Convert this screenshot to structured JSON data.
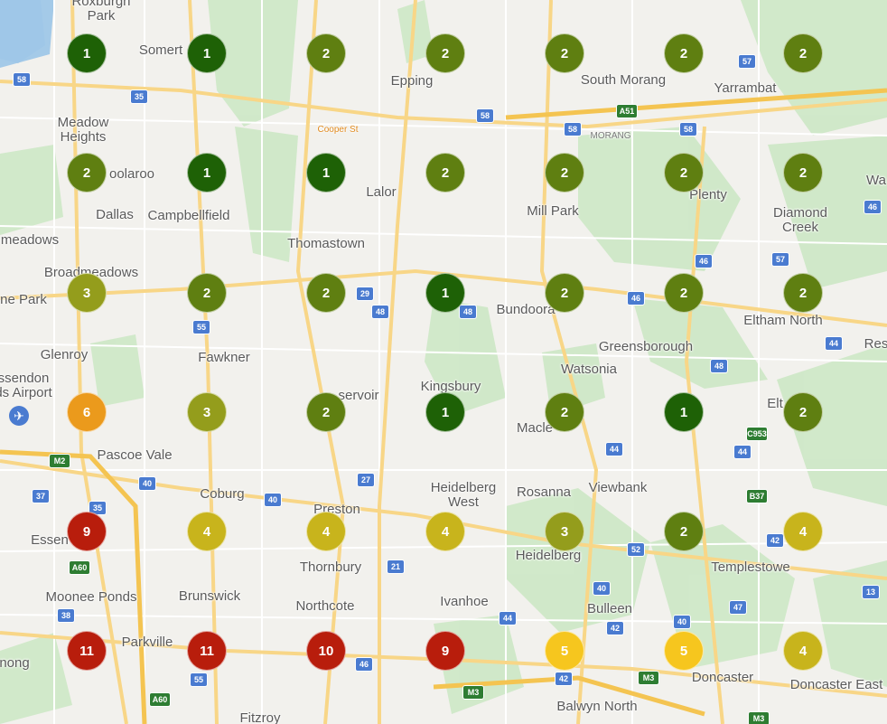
{
  "colors": {
    "marker_1": "#1e6106",
    "marker_2": "#5f7f11",
    "marker_3": "#949d1c",
    "marker_4": "#c8b41c",
    "marker_5": "#f6c61e",
    "marker_6": "#eb9a1c",
    "marker_high": "#b81d0c",
    "airport": "#4a7bd0"
  },
  "places": [
    {
      "id": "roxburgh-park",
      "text": "Roxburgh\nPark"
    },
    {
      "id": "somerton",
      "text": "Somert"
    },
    {
      "id": "epping",
      "text": "Epping"
    },
    {
      "id": "south-morang",
      "text": "South Morang"
    },
    {
      "id": "yarrambat",
      "text": "Yarrambat"
    },
    {
      "id": "meadow-heights",
      "text": "Meadow\nHeights"
    },
    {
      "id": "coolaroo",
      "text": "oolaroo"
    },
    {
      "id": "lalor",
      "text": "Lalor"
    },
    {
      "id": "mill-park",
      "text": "Mill Park"
    },
    {
      "id": "plenty",
      "text": "Plenty"
    },
    {
      "id": "wa",
      "text": "Wa"
    },
    {
      "id": "dallas",
      "text": "Dallas"
    },
    {
      "id": "campbellfield",
      "text": "Campbellfield"
    },
    {
      "id": "diamond-creek",
      "text": "Diamond\nCreek"
    },
    {
      "id": "meadows",
      "text": "meadows"
    },
    {
      "id": "thomastown",
      "text": "Thomastown"
    },
    {
      "id": "broadmeadows",
      "text": "Broadmeadows"
    },
    {
      "id": "ne-park",
      "text": "ne Park"
    },
    {
      "id": "bundoora",
      "text": "Bundoora"
    },
    {
      "id": "eltham-north",
      "text": "Eltham North"
    },
    {
      "id": "glenroy",
      "text": "Glenroy"
    },
    {
      "id": "greensborough",
      "text": "Greensborough"
    },
    {
      "id": "res",
      "text": "Res"
    },
    {
      "id": "fawkner",
      "text": "Fawkner"
    },
    {
      "id": "watsonia",
      "text": "Watsonia"
    },
    {
      "id": "essendon-airport",
      "text": "ssendon\nds Airport"
    },
    {
      "id": "reservoir",
      "text": "servoir"
    },
    {
      "id": "kingsbury",
      "text": "Kingsbury"
    },
    {
      "id": "eltham",
      "text": "Elt"
    },
    {
      "id": "macleod",
      "text": "Macle"
    },
    {
      "id": "pascoe-vale",
      "text": "Pascoe Vale"
    },
    {
      "id": "coburg",
      "text": "Coburg"
    },
    {
      "id": "heidelberg-west",
      "text": "Heidelberg\nWest"
    },
    {
      "id": "rosanna",
      "text": "Rosanna"
    },
    {
      "id": "viewbank",
      "text": "Viewbank"
    },
    {
      "id": "preston",
      "text": "Preston"
    },
    {
      "id": "essendon",
      "text": "Essen"
    },
    {
      "id": "heidelberg",
      "text": "Heidelberg"
    },
    {
      "id": "thornbury",
      "text": "Thornbury"
    },
    {
      "id": "templestowe",
      "text": "Templestowe"
    },
    {
      "id": "moonee-ponds",
      "text": "Moonee Ponds"
    },
    {
      "id": "brunswick",
      "text": "Brunswick"
    },
    {
      "id": "northcote",
      "text": "Northcote"
    },
    {
      "id": "ivanhoe",
      "text": "Ivanhoe"
    },
    {
      "id": "bulleen",
      "text": "Bulleen"
    },
    {
      "id": "parkville",
      "text": "Parkville"
    },
    {
      "id": "flemington",
      "text": "nong"
    },
    {
      "id": "doncaster",
      "text": "Doncaster"
    },
    {
      "id": "doncaster-east",
      "text": "Doncaster East"
    },
    {
      "id": "balwyn-north",
      "text": "Balwyn North"
    },
    {
      "id": "fitzroy",
      "text": "Fitzroy"
    }
  ],
  "road_labels": [
    {
      "id": "cooper-st",
      "text": "Cooper St"
    },
    {
      "id": "morang",
      "text": "MORANG"
    }
  ],
  "shields": [
    {
      "id": "s58a",
      "text": "58"
    },
    {
      "id": "s35",
      "text": "35"
    },
    {
      "id": "s57a",
      "text": "57"
    },
    {
      "id": "s58b",
      "text": "58"
    },
    {
      "id": "s58c",
      "text": "58"
    },
    {
      "id": "sa51",
      "text": "A51"
    },
    {
      "id": "s58d",
      "text": "58"
    },
    {
      "id": "s46a",
      "text": "46"
    },
    {
      "id": "s46b",
      "text": "46"
    },
    {
      "id": "s57b",
      "text": "57"
    },
    {
      "id": "s29",
      "text": "29"
    },
    {
      "id": "s48a",
      "text": "48"
    },
    {
      "id": "s48b",
      "text": "48"
    },
    {
      "id": "s55a",
      "text": "55"
    },
    {
      "id": "s46c",
      "text": "46"
    },
    {
      "id": "s44a",
      "text": "44"
    },
    {
      "id": "s48c",
      "text": "48"
    },
    {
      "id": "s44b",
      "text": "44"
    },
    {
      "id": "s44c",
      "text": "44"
    },
    {
      "id": "sc953",
      "text": "C953"
    },
    {
      "id": "sm2a",
      "text": "M2"
    },
    {
      "id": "s40a",
      "text": "40"
    },
    {
      "id": "s37",
      "text": "37"
    },
    {
      "id": "s35b",
      "text": "35"
    },
    {
      "id": "s27",
      "text": "27"
    },
    {
      "id": "s40b",
      "text": "40"
    },
    {
      "id": "sb37",
      "text": "B37"
    },
    {
      "id": "s42a",
      "text": "42"
    },
    {
      "id": "s52",
      "text": "52"
    },
    {
      "id": "sa60a",
      "text": "A60"
    },
    {
      "id": "s21",
      "text": "21"
    },
    {
      "id": "s40c",
      "text": "40"
    },
    {
      "id": "s13",
      "text": "13"
    },
    {
      "id": "s38",
      "text": "38"
    },
    {
      "id": "s44d",
      "text": "44"
    },
    {
      "id": "s42b",
      "text": "42"
    },
    {
      "id": "s47",
      "text": "47"
    },
    {
      "id": "s40d",
      "text": "40"
    },
    {
      "id": "s46d",
      "text": "46"
    },
    {
      "id": "s55b",
      "text": "55"
    },
    {
      "id": "s42c",
      "text": "42"
    },
    {
      "id": "sm3a",
      "text": "M3"
    },
    {
      "id": "sm3b",
      "text": "M3"
    },
    {
      "id": "sa60b",
      "text": "A60"
    },
    {
      "id": "sm3c",
      "text": "M3"
    }
  ],
  "markers": [
    {
      "row": 0,
      "col": 0,
      "count": "1"
    },
    {
      "row": 0,
      "col": 1,
      "count": "1"
    },
    {
      "row": 0,
      "col": 2,
      "count": "2"
    },
    {
      "row": 0,
      "col": 3,
      "count": "2"
    },
    {
      "row": 0,
      "col": 4,
      "count": "2"
    },
    {
      "row": 0,
      "col": 5,
      "count": "2"
    },
    {
      "row": 0,
      "col": 6,
      "count": "2"
    },
    {
      "row": 1,
      "col": 0,
      "count": "2"
    },
    {
      "row": 1,
      "col": 1,
      "count": "1"
    },
    {
      "row": 1,
      "col": 2,
      "count": "1"
    },
    {
      "row": 1,
      "col": 3,
      "count": "2"
    },
    {
      "row": 1,
      "col": 4,
      "count": "2"
    },
    {
      "row": 1,
      "col": 5,
      "count": "2"
    },
    {
      "row": 1,
      "col": 6,
      "count": "2"
    },
    {
      "row": 2,
      "col": 0,
      "count": "3"
    },
    {
      "row": 2,
      "col": 1,
      "count": "2"
    },
    {
      "row": 2,
      "col": 2,
      "count": "2"
    },
    {
      "row": 2,
      "col": 3,
      "count": "1"
    },
    {
      "row": 2,
      "col": 4,
      "count": "2"
    },
    {
      "row": 2,
      "col": 5,
      "count": "2"
    },
    {
      "row": 2,
      "col": 6,
      "count": "2"
    },
    {
      "row": 3,
      "col": 0,
      "count": "6"
    },
    {
      "row": 3,
      "col": 1,
      "count": "3"
    },
    {
      "row": 3,
      "col": 2,
      "count": "2"
    },
    {
      "row": 3,
      "col": 3,
      "count": "1"
    },
    {
      "row": 3,
      "col": 4,
      "count": "2"
    },
    {
      "row": 3,
      "col": 5,
      "count": "1"
    },
    {
      "row": 3,
      "col": 6,
      "count": "2"
    },
    {
      "row": 4,
      "col": 0,
      "count": "9"
    },
    {
      "row": 4,
      "col": 1,
      "count": "4"
    },
    {
      "row": 4,
      "col": 2,
      "count": "4"
    },
    {
      "row": 4,
      "col": 3,
      "count": "4"
    },
    {
      "row": 4,
      "col": 4,
      "count": "3"
    },
    {
      "row": 4,
      "col": 5,
      "count": "2"
    },
    {
      "row": 4,
      "col": 6,
      "count": "4"
    },
    {
      "row": 5,
      "col": 0,
      "count": "11"
    },
    {
      "row": 5,
      "col": 1,
      "count": "11"
    },
    {
      "row": 5,
      "col": 2,
      "count": "10"
    },
    {
      "row": 5,
      "col": 3,
      "count": "9"
    },
    {
      "row": 5,
      "col": 4,
      "count": "5"
    },
    {
      "row": 5,
      "col": 5,
      "count": "5"
    },
    {
      "row": 5,
      "col": 6,
      "count": "4"
    }
  ]
}
